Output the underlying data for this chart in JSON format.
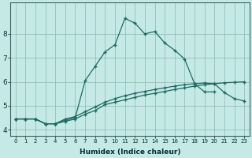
{
  "xlabel": "Humidex (Indice chaleur)",
  "xlim": [
    -0.5,
    23.5
  ],
  "ylim": [
    3.75,
    9.3
  ],
  "yticks": [
    4,
    5,
    6,
    7,
    8
  ],
  "xticks": [
    0,
    1,
    2,
    3,
    4,
    5,
    6,
    7,
    8,
    9,
    10,
    11,
    12,
    13,
    14,
    15,
    16,
    17,
    18,
    19,
    20,
    21,
    22,
    23
  ],
  "bg_color": "#c5eae6",
  "grid_color": "#89b8b2",
  "line_color": "#1a6b60",
  "line1_x": [
    0,
    1,
    2,
    3,
    4,
    5,
    6,
    7,
    8,
    9,
    10,
    11,
    12,
    13,
    14,
    15,
    16,
    17,
    18,
    19,
    20,
    21,
    22,
    23
  ],
  "line1_y": [
    4.45,
    4.45,
    4.45,
    4.25,
    4.25,
    4.35,
    4.45,
    4.65,
    4.8,
    5.05,
    5.15,
    5.25,
    5.35,
    5.45,
    5.52,
    5.6,
    5.68,
    5.75,
    5.82,
    5.88,
    5.92,
    5.96,
    5.98,
    6.0
  ],
  "line2_x": [
    0,
    1,
    2,
    3,
    4,
    5,
    6,
    7,
    8,
    9,
    10,
    11,
    12,
    13,
    14,
    15,
    16,
    17,
    18,
    19,
    20,
    21,
    22,
    23
  ],
  "line2_y": [
    4.45,
    4.45,
    4.45,
    4.25,
    4.25,
    4.45,
    4.55,
    4.75,
    4.95,
    5.15,
    5.3,
    5.42,
    5.52,
    5.6,
    5.68,
    5.75,
    5.82,
    5.88,
    5.92,
    5.95,
    5.92,
    5.55,
    5.3,
    5.2
  ],
  "line3_x": [
    0,
    1,
    2,
    3,
    4,
    5,
    6,
    7,
    8,
    9,
    10,
    11,
    12,
    13,
    14,
    15,
    16,
    17,
    18,
    19,
    20
  ],
  "line3_y": [
    4.45,
    4.45,
    4.45,
    4.25,
    4.25,
    4.4,
    4.5,
    6.05,
    6.65,
    7.25,
    7.55,
    8.65,
    8.45,
    8.0,
    8.1,
    7.62,
    7.32,
    6.95,
    5.92,
    5.58,
    5.58
  ]
}
